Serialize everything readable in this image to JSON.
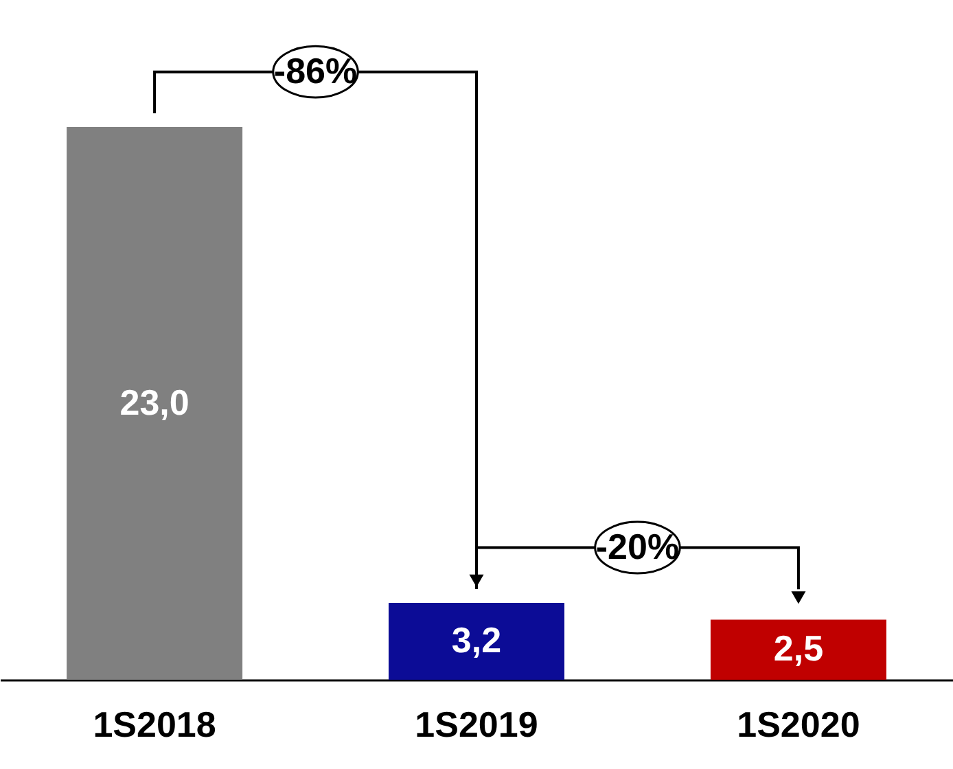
{
  "chart_data": {
    "type": "bar",
    "categories": [
      "1S2018",
      "1S2019",
      "1S2020"
    ],
    "values": [
      23.0,
      3.2,
      2.5
    ],
    "colors": [
      "#808080",
      "#0c0c96",
      "#c00000"
    ],
    "value_labels": [
      "23,0",
      "3,2",
      "2,5"
    ],
    "annotations": [
      "-86%",
      "-20%"
    ],
    "grid": false
  }
}
